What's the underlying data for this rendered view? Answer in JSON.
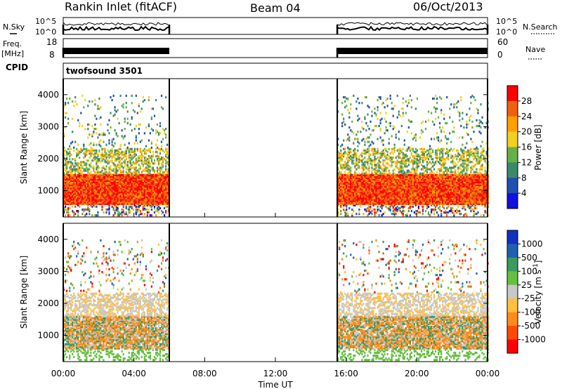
{
  "header": {
    "title": "Rankin Inlet (fitACF)",
    "beam": "Beam 04",
    "date": "06/Oct/2013"
  },
  "colors": {
    "power_scale": [
      "#1010e0",
      "#2050b0",
      "#3a8a6a",
      "#66b04a",
      "#f0d020",
      "#ffa000",
      "#f06010",
      "#ff0000"
    ],
    "velocity_scale": [
      "#ff0000",
      "#ff4a00",
      "#ff8c1a",
      "#ffc040",
      "#c8c8c8",
      "#66c040",
      "#3a9a60",
      "#2060b0",
      "#1030c0"
    ]
  },
  "chart_data": [
    {
      "type": "line",
      "name_panel": "N.Sky / N.Search",
      "left_label": "N.Sky",
      "right_label": "N.Search",
      "left_ticks": [
        "10^5",
        "10^0"
      ],
      "right_ticks": [
        "10^5",
        "10^0"
      ],
      "active_intervals_ut": [
        [
          0,
          6
        ],
        [
          15.5,
          24
        ]
      ]
    },
    {
      "type": "line",
      "name_panel": "Freq / Nave",
      "left_label_top": "Freq.",
      "left_label_bottom": "[MHz]",
      "right_label": "Nave",
      "left_ticks": [
        "18",
        "8"
      ],
      "right_ticks": [
        "60",
        "0"
      ],
      "active_intervals_ut": [
        [
          0,
          6
        ],
        [
          15.5,
          24
        ]
      ]
    },
    {
      "type": "table",
      "label": "CPID",
      "value": "twofsound 3501"
    },
    {
      "type": "heatmap",
      "quantity": "Power",
      "ylabel": "Slant Range [km]",
      "y_ticks": [
        "1000",
        "2000",
        "3000",
        "4000"
      ],
      "ylim": [
        180,
        4500
      ],
      "xlim": [
        0,
        24
      ],
      "colorbar_label": "Power [dB]",
      "colorbar_ticks": [
        "4",
        "8",
        "12",
        "16",
        "20",
        "24",
        "28"
      ],
      "data_intervals_ut": [
        [
          0,
          6
        ],
        [
          15.5,
          24
        ]
      ]
    },
    {
      "type": "heatmap",
      "quantity": "Velocity",
      "ylabel": "Slant Range [km]",
      "y_ticks": [
        "1000",
        "2000",
        "3000",
        "4000"
      ],
      "ylim": [
        180,
        4500
      ],
      "xlim": [
        0,
        24
      ],
      "xlabel": "Time UT",
      "x_ticks": [
        "00:00",
        "04:00",
        "08:00",
        "12:00",
        "16:00",
        "20:00",
        "00:00"
      ],
      "colorbar_label": "Velocity [m s",
      "colorbar_label_sup": "-1",
      "colorbar_label_end": "]",
      "colorbar_ticks": [
        "1000",
        "500",
        "100",
        "25",
        "-25",
        "-100",
        "-500",
        "-1000"
      ],
      "data_intervals_ut": [
        [
          0,
          6
        ],
        [
          15.5,
          24
        ]
      ]
    }
  ]
}
